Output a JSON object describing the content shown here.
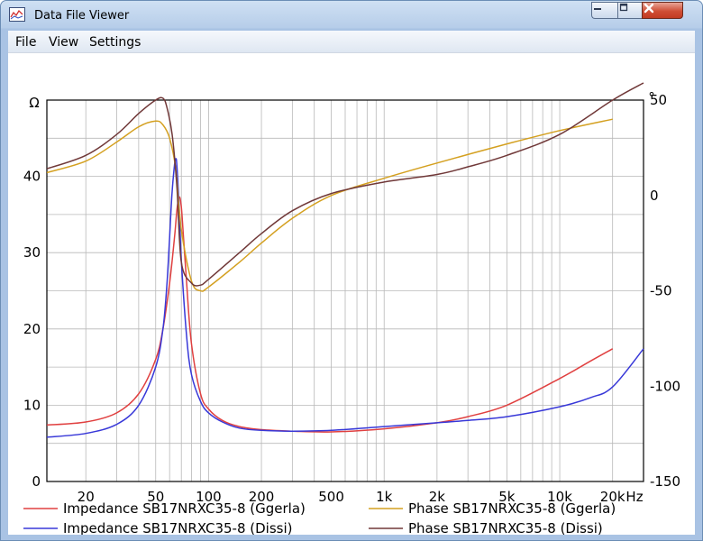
{
  "window": {
    "title": "Data File Viewer",
    "icon": "graph-icon"
  },
  "menu": {
    "items": [
      "File",
      "View",
      "Settings"
    ]
  },
  "colors": {
    "red": "#e04040",
    "blue": "#3838d8",
    "gold": "#d4a020",
    "brown": "#703838"
  },
  "chart_data": {
    "type": "line",
    "title": "",
    "xlabel": "Hz",
    "ylabel_left": "Ω",
    "ylabel_right": "°",
    "x_scale": "log",
    "xlim": [
      12,
      30000
    ],
    "ylim_left": [
      0,
      50
    ],
    "ylim_right": [
      -150,
      50
    ],
    "x_ticks": [
      {
        "value": 20,
        "label": "20"
      },
      {
        "value": 50,
        "label": "50"
      },
      {
        "value": 100,
        "label": "100"
      },
      {
        "value": 200,
        "label": "200"
      },
      {
        "value": 500,
        "label": "500"
      },
      {
        "value": 1000,
        "label": "1k"
      },
      {
        "value": 2000,
        "label": "2k"
      },
      {
        "value": 5000,
        "label": "5k"
      },
      {
        "value": 10000,
        "label": "10k"
      },
      {
        "value": 20000,
        "label": "20k"
      }
    ],
    "y_ticks_left": [
      0,
      10,
      20,
      30,
      40
    ],
    "y_ticks_right": [
      -150,
      -100,
      -50,
      0,
      50
    ],
    "grid": true,
    "legend_placement": "bottom",
    "series": [
      {
        "name": "Impedance SB17NRXC35-8 (Ggerla)",
        "axis": "left",
        "color": "#e04040",
        "x": [
          12,
          20,
          30,
          40,
          50,
          55,
          60,
          64,
          66,
          68,
          70,
          72,
          75,
          80,
          90,
          100,
          120,
          150,
          200,
          300,
          500,
          1000,
          2000,
          3000,
          5000,
          10000,
          15000,
          20000
        ],
        "y": [
          7.4,
          7.8,
          9.0,
          11.5,
          16.0,
          20.0,
          26.0,
          32.0,
          35.5,
          37.3,
          36.0,
          32.0,
          26.0,
          18.0,
          11.5,
          9.5,
          8.0,
          7.2,
          6.8,
          6.6,
          6.5,
          6.9,
          7.7,
          8.5,
          10.0,
          13.5,
          15.8,
          17.4
        ]
      },
      {
        "name": "Impedance SB17NRXC35-8 (Dissi)",
        "axis": "left",
        "color": "#3838d8",
        "x": [
          12,
          20,
          30,
          40,
          50,
          55,
          58,
          60,
          62,
          64,
          65,
          66,
          68,
          70,
          75,
          80,
          90,
          100,
          120,
          150,
          200,
          300,
          500,
          1000,
          2000,
          3000,
          5000,
          10000,
          15000,
          20000,
          30000
        ],
        "y": [
          5.8,
          6.3,
          7.5,
          10.0,
          15.0,
          20.0,
          26.0,
          32.0,
          38.0,
          41.5,
          42.3,
          41.5,
          36.0,
          29.0,
          19.0,
          14.0,
          10.5,
          9.0,
          7.8,
          7.0,
          6.7,
          6.6,
          6.7,
          7.2,
          7.7,
          8.0,
          8.5,
          9.8,
          11.0,
          12.4,
          17.4
        ]
      },
      {
        "name": "Phase SB17NRXC35-8 (Ggerla)",
        "axis": "right",
        "color": "#d4a020",
        "x": [
          12,
          20,
          30,
          40,
          50,
          55,
          60,
          65,
          70,
          80,
          90,
          100,
          150,
          200,
          300,
          500,
          1000,
          2000,
          5000,
          10000,
          20000
        ],
        "y": [
          12,
          18,
          28,
          36,
          39,
          37,
          30,
          14,
          -18,
          -45,
          -50,
          -48,
          -35,
          -25,
          -12,
          0,
          9,
          17,
          27,
          34,
          40
        ]
      },
      {
        "name": "Phase SB17NRXC35-8 (Dissi)",
        "axis": "right",
        "color": "#703838",
        "x": [
          12,
          20,
          30,
          40,
          50,
          55,
          58,
          62,
          66,
          70,
          80,
          90,
          100,
          150,
          200,
          300,
          500,
          1000,
          2000,
          3000,
          5000,
          10000,
          20000,
          30000
        ],
        "y": [
          14,
          21,
          32,
          43,
          50,
          51,
          46,
          32,
          5,
          -35,
          -46,
          -47,
          -44,
          -30,
          -20,
          -8,
          1,
          7,
          11,
          15,
          21,
          32,
          50,
          59
        ]
      }
    ]
  }
}
